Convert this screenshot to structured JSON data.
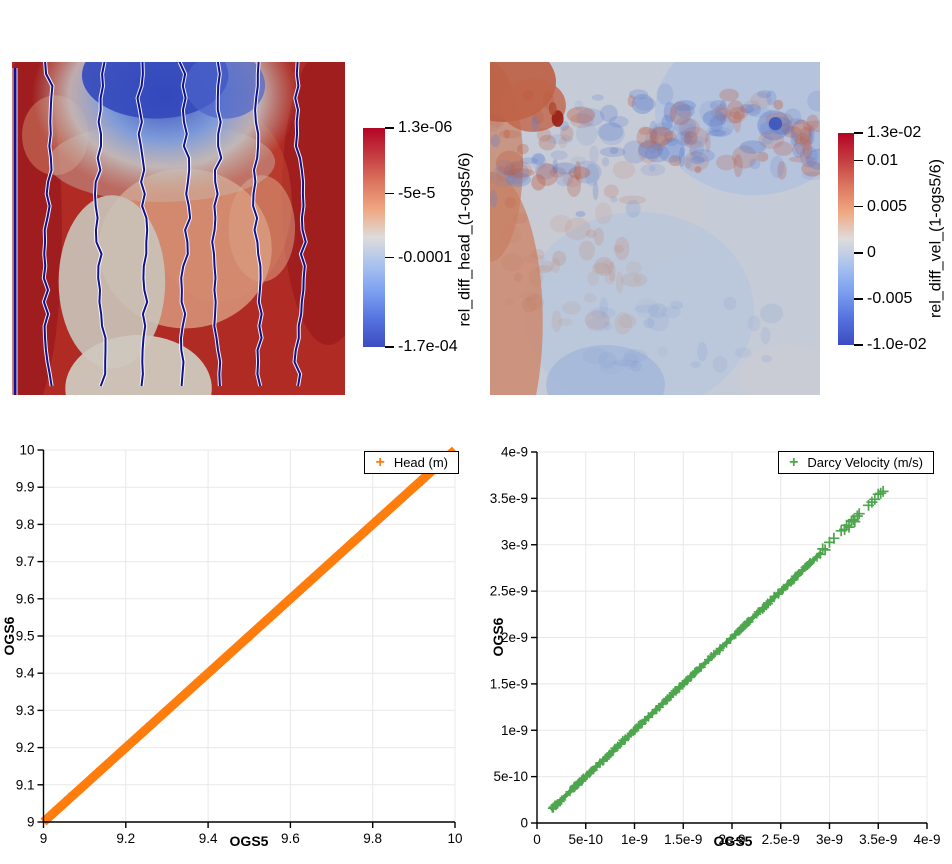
{
  "figure": {
    "background": "#ffffff",
    "description": "OGS5 vs OGS6 comparison: relative difference fields (head, velocity) with colorbars, and scatter comparison plots"
  },
  "colormap": {
    "name": "cool-to-warm",
    "stops": [
      "#b40426",
      "#c43c40",
      "#dd7660",
      "#f0a882",
      "#dedcdb",
      "#a9c2ee",
      "#7b9ff0",
      "#5572df",
      "#3b4cc0"
    ]
  },
  "heatmap_head": {
    "colorbar_title": "rel_diff_head_(1-ogs5/6)",
    "range_max": 1.3e-06,
    "range_min": -0.00017,
    "ticks": [
      {
        "label": "1.3e-06",
        "value": 1.3e-06
      },
      {
        "label": "-5e-5",
        "value": -5e-05
      },
      {
        "label": "-0.0001",
        "value": -0.0001
      },
      {
        "label": "-1.7e-04",
        "value": -0.00017
      }
    ]
  },
  "heatmap_vel": {
    "colorbar_title": "rel_diff_vel_(1-ogs5/6)",
    "range_max": 0.013,
    "range_min": -0.01,
    "ticks": [
      {
        "label": "1.3e-02",
        "value": 0.013
      },
      {
        "label": "0.01",
        "value": 0.01
      },
      {
        "label": "0.005",
        "value": 0.005
      },
      {
        "label": "0",
        "value": 0
      },
      {
        "label": "-0.005",
        "value": -0.005
      },
      {
        "label": "-1.0e-02",
        "value": -0.01
      }
    ]
  },
  "chart_data": [
    {
      "type": "heatmap",
      "id": "head_field",
      "title": "rel_diff_head_(1-ogs5/6)",
      "colormap": "cool-to-warm",
      "value_range": [
        -0.00017,
        1.3e-06
      ],
      "colorbar_tick_labels": [
        "1.3e-06",
        "-5e-5",
        "-0.0001",
        "-1.7e-04"
      ],
      "features": "square domain, mostly dark red field, blue region at top center, light gray patches center-left and bottom, 7 wavy near-vertical dark-blue contour lines with white halos plus one straight contour on the left edge"
    },
    {
      "type": "heatmap",
      "id": "vel_field",
      "title": "rel_diff_vel_(1-ogs5/6)",
      "colormap": "cool-to-warm",
      "value_range": [
        -0.01,
        0.013
      ],
      "colorbar_tick_labels": [
        "1.3e-02",
        "0.01",
        "0.005",
        "0",
        "-0.005",
        "-1.0e-02"
      ],
      "features": "square domain, pale blue-gray field, reddish left edge and top-left corner, mottled red/blue speckle band running diagonally across the upper third, dark red speck upper-left, dark blue speck upper-right"
    },
    {
      "type": "scatter",
      "id": "head_compare",
      "legend_label": "Head (m)",
      "marker": "+",
      "color": "#ff7d0c",
      "xlabel": "OGS5",
      "ylabel": "OGS6",
      "xlim": [
        9,
        10
      ],
      "ylim": [
        9,
        10
      ],
      "x_tick_labels": [
        "9",
        "9.2",
        "9.4",
        "9.6",
        "9.8",
        "10"
      ],
      "y_tick_labels": [
        "9",
        "9.1",
        "9.2",
        "9.3",
        "9.4",
        "9.5",
        "9.6",
        "9.7",
        "9.8",
        "9.9",
        "10"
      ],
      "relation": "y = x (perfect agreement band)",
      "dense_segment": {
        "x_start": 9.0,
        "x_end": 10.0
      },
      "grid": true,
      "legend_position": "top-right-boxed"
    },
    {
      "type": "scatter",
      "id": "velocity_compare",
      "legend_label": "Darcy Velocity (m/s)",
      "marker": "+",
      "color": "#4da64d",
      "xlabel": "OGS5",
      "ylabel": "OGS6",
      "xlim": [
        0,
        4e-09
      ],
      "ylim": [
        0,
        4e-09
      ],
      "x_tick_labels": [
        "0",
        "5e-10",
        "1e-9",
        "1.5e-9",
        "2e-9",
        "2.5e-9",
        "3e-9",
        "3.5e-9",
        "4e-9"
      ],
      "y_tick_labels": [
        "0",
        "5e-10",
        "1e-9",
        "1.5e-9",
        "2e-9",
        "2.5e-9",
        "3e-9",
        "3.5e-9",
        "4e-9"
      ],
      "relation": "y ≈ x",
      "dense_segment": {
        "x_start": 1.4e-10,
        "x_end": 2.92e-09
      },
      "outlier_points": [
        [
          2.93e-09,
          2.955e-09
        ],
        [
          2.955e-09,
          2.945e-09
        ],
        [
          3e-09,
          3.025e-09
        ],
        [
          3.045e-09,
          3.07e-09
        ],
        [
          3.12e-09,
          3.15e-09
        ],
        [
          3.155e-09,
          3.165e-09
        ],
        [
          3.175e-09,
          3.21e-09
        ],
        [
          3.2e-09,
          3.19e-09
        ],
        [
          3.225e-09,
          3.255e-09
        ],
        [
          3.245e-09,
          3.27e-09
        ],
        [
          3.26e-09,
          3.25e-09
        ],
        [
          3.285e-09,
          3.31e-09
        ],
        [
          3.305e-09,
          3.335e-09
        ],
        [
          3.4e-09,
          3.425e-09
        ],
        [
          3.435e-09,
          3.46e-09
        ],
        [
          3.465e-09,
          3.49e-09
        ],
        [
          3.5e-09,
          3.545e-09
        ],
        [
          3.525e-09,
          3.555e-09
        ],
        [
          3.55e-09,
          3.575e-09
        ]
      ],
      "grid": true,
      "legend_position": "top-right-boxed"
    }
  ]
}
